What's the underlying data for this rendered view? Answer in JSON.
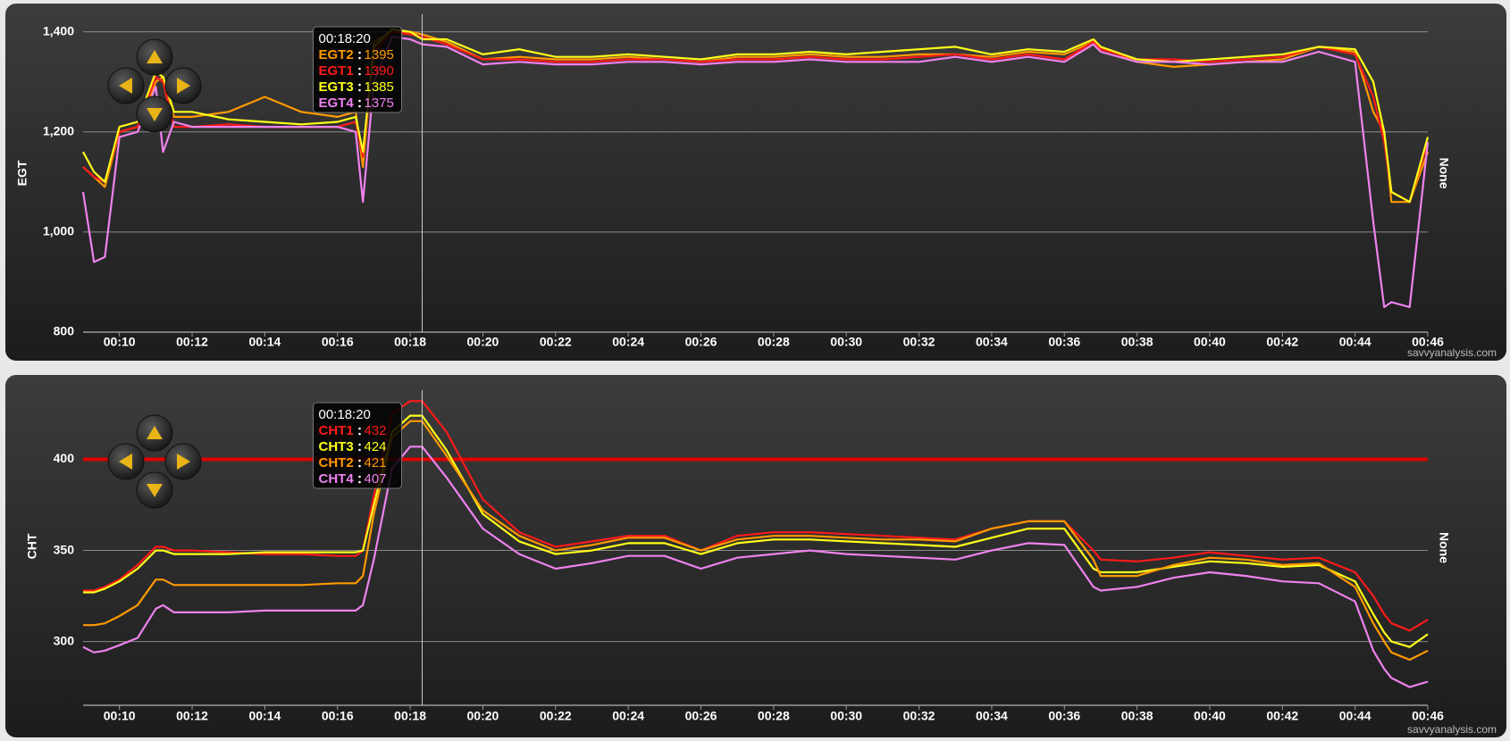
{
  "chart_data": [
    {
      "type": "line",
      "y_label": "EGT",
      "right_label": "None",
      "watermark": "savvyanalysis.com",
      "grid": true,
      "x": [
        9,
        9.3,
        9.6,
        10,
        10.5,
        11,
        11.2,
        11.5,
        12,
        13,
        14,
        15,
        16,
        16.5,
        16.7,
        17,
        17.5,
        18,
        18.33,
        19,
        20,
        21,
        22,
        23,
        24,
        25,
        26,
        27,
        28,
        29,
        30,
        31,
        32,
        33,
        34,
        35,
        36,
        36.8,
        37,
        38,
        39,
        40,
        41,
        42,
        43,
        44,
        44.5,
        44.8,
        45,
        45.5,
        46
      ],
      "xlim": [
        9,
        46
      ],
      "xticks": [
        {
          "value": 10,
          "label": "00:10"
        },
        {
          "value": 12,
          "label": "00:12"
        },
        {
          "value": 14,
          "label": "00:14"
        },
        {
          "value": 16,
          "label": "00:16"
        },
        {
          "value": 18,
          "label": "00:18"
        },
        {
          "value": 20,
          "label": "00:20"
        },
        {
          "value": 22,
          "label": "00:22"
        },
        {
          "value": 24,
          "label": "00:24"
        },
        {
          "value": 26,
          "label": "00:26"
        },
        {
          "value": 28,
          "label": "00:28"
        },
        {
          "value": 30,
          "label": "00:30"
        },
        {
          "value": 32,
          "label": "00:32"
        },
        {
          "value": 34,
          "label": "00:34"
        },
        {
          "value": 36,
          "label": "00:36"
        },
        {
          "value": 38,
          "label": "00:38"
        },
        {
          "value": 40,
          "label": "00:40"
        },
        {
          "value": 42,
          "label": "00:42"
        },
        {
          "value": 44,
          "label": "00:44"
        },
        {
          "value": 46,
          "label": "00:46"
        }
      ],
      "ylim": [
        800,
        1435
      ],
      "yticks": [
        {
          "value": 800,
          "label": "800"
        },
        {
          "value": 1000,
          "label": "1,000"
        },
        {
          "value": 1200,
          "label": "1,200"
        },
        {
          "value": 1400,
          "label": "1,400"
        }
      ],
      "series": [
        {
          "name": "EGT2",
          "color": "#ff9900",
          "values": [
            1130,
            1110,
            1090,
            1200,
            1210,
            1300,
            1310,
            1230,
            1230,
            1240,
            1270,
            1240,
            1230,
            1240,
            1130,
            1380,
            1400,
            1400,
            1395,
            1380,
            1345,
            1350,
            1345,
            1345,
            1350,
            1345,
            1340,
            1350,
            1350,
            1355,
            1350,
            1350,
            1355,
            1355,
            1350,
            1360,
            1355,
            1380,
            1370,
            1340,
            1330,
            1335,
            1340,
            1345,
            1370,
            1360,
            1240,
            1200,
            1060,
            1060,
            1160
          ]
        },
        {
          "name": "EGT1",
          "color": "#ff1a1a",
          "values": [
            1130,
            1110,
            1100,
            1200,
            1210,
            1310,
            1300,
            1210,
            1210,
            1215,
            1210,
            1210,
            1210,
            1220,
            1150,
            1360,
            1400,
            1395,
            1390,
            1375,
            1345,
            1345,
            1340,
            1340,
            1345,
            1345,
            1340,
            1345,
            1345,
            1350,
            1345,
            1345,
            1350,
            1355,
            1345,
            1355,
            1345,
            1380,
            1365,
            1345,
            1345,
            1340,
            1345,
            1350,
            1370,
            1355,
            1270,
            1180,
            1080,
            1060,
            1180
          ]
        },
        {
          "name": "EGT3",
          "color": "#ffff1a",
          "values": [
            1160,
            1120,
            1100,
            1210,
            1220,
            1320,
            1310,
            1240,
            1240,
            1225,
            1220,
            1215,
            1220,
            1230,
            1160,
            1370,
            1405,
            1400,
            1385,
            1385,
            1355,
            1365,
            1350,
            1350,
            1355,
            1350,
            1345,
            1355,
            1355,
            1360,
            1355,
            1360,
            1365,
            1370,
            1355,
            1365,
            1360,
            1385,
            1370,
            1345,
            1340,
            1345,
            1350,
            1355,
            1370,
            1365,
            1300,
            1200,
            1080,
            1060,
            1190
          ]
        },
        {
          "name": "EGT4",
          "color": "#ee82ee",
          "values": [
            1080,
            940,
            950,
            1190,
            1200,
            1290,
            1160,
            1220,
            1210,
            1210,
            1210,
            1210,
            1210,
            1200,
            1060,
            1300,
            1390,
            1385,
            1375,
            1370,
            1335,
            1340,
            1335,
            1335,
            1340,
            1340,
            1335,
            1340,
            1340,
            1345,
            1340,
            1340,
            1340,
            1350,
            1340,
            1350,
            1340,
            1375,
            1360,
            1340,
            1340,
            1335,
            1340,
            1340,
            1360,
            1340,
            1020,
            850,
            860,
            850,
            1180
          ]
        }
      ],
      "crosshair": {
        "value": 18.33,
        "label": "00:18:20"
      },
      "tooltip_values": [
        1395,
        1390,
        1385,
        1375
      ]
    },
    {
      "type": "line",
      "y_label": "CHT",
      "right_label": "None",
      "watermark": "savvyanalysis.com",
      "grid": true,
      "x": [
        9,
        9.3,
        9.6,
        10,
        10.5,
        11,
        11.2,
        11.5,
        12,
        13,
        14,
        15,
        16,
        16.5,
        16.7,
        17,
        17.5,
        18,
        18.33,
        19,
        20,
        21,
        22,
        23,
        24,
        25,
        26,
        27,
        28,
        29,
        30,
        31,
        32,
        33,
        34,
        35,
        36,
        36.8,
        37,
        38,
        39,
        40,
        41,
        42,
        43,
        44,
        44.5,
        44.8,
        45,
        45.5,
        46
      ],
      "xlim": [
        9,
        46
      ],
      "xticks": [
        {
          "value": 10,
          "label": "00:10"
        },
        {
          "value": 12,
          "label": "00:12"
        },
        {
          "value": 14,
          "label": "00:14"
        },
        {
          "value": 16,
          "label": "00:16"
        },
        {
          "value": 18,
          "label": "00:18"
        },
        {
          "value": 20,
          "label": "00:20"
        },
        {
          "value": 22,
          "label": "00:22"
        },
        {
          "value": 24,
          "label": "00:24"
        },
        {
          "value": 26,
          "label": "00:26"
        },
        {
          "value": 28,
          "label": "00:28"
        },
        {
          "value": 30,
          "label": "00:30"
        },
        {
          "value": 32,
          "label": "00:32"
        },
        {
          "value": 34,
          "label": "00:34"
        },
        {
          "value": 36,
          "label": "00:36"
        },
        {
          "value": 38,
          "label": "00:38"
        },
        {
          "value": 40,
          "label": "00:40"
        },
        {
          "value": 42,
          "label": "00:42"
        },
        {
          "value": 44,
          "label": "00:44"
        },
        {
          "value": 46,
          "label": "00:46"
        }
      ],
      "ylim": [
        265,
        438
      ],
      "yticks": [
        300,
        350,
        400
      ],
      "threshold": {
        "value": 400,
        "color": "#e00000"
      },
      "series": [
        {
          "name": "CHT1",
          "color": "#ff1a1a",
          "values": [
            328,
            328,
            330,
            334,
            342,
            352,
            352,
            350,
            350,
            349,
            348,
            348,
            347,
            347,
            350,
            380,
            425,
            432,
            432,
            415,
            378,
            360,
            352,
            355,
            358,
            358,
            350,
            358,
            360,
            360,
            359,
            358,
            357,
            356,
            362,
            366,
            366,
            350,
            345,
            344,
            346,
            349,
            347,
            345,
            346,
            338,
            325,
            315,
            310,
            306,
            312
          ]
        },
        {
          "name": "CHT3",
          "color": "#ffff1a",
          "values": [
            327,
            327,
            329,
            333,
            340,
            350,
            350,
            348,
            348,
            348,
            349,
            349,
            349,
            349,
            350,
            375,
            415,
            424,
            424,
            405,
            370,
            355,
            348,
            350,
            354,
            354,
            348,
            354,
            356,
            356,
            355,
            354,
            353,
            352,
            357,
            362,
            362,
            340,
            338,
            338,
            341,
            344,
            343,
            341,
            342,
            333,
            315,
            305,
            300,
            297,
            304
          ]
        },
        {
          "name": "CHT2",
          "color": "#ff9900",
          "values": [
            309,
            309,
            310,
            314,
            320,
            334,
            334,
            331,
            331,
            331,
            331,
            331,
            332,
            332,
            336,
            370,
            412,
            421,
            421,
            402,
            372,
            358,
            350,
            353,
            357,
            357,
            350,
            356,
            358,
            358,
            357,
            356,
            356,
            355,
            362,
            366,
            366,
            345,
            336,
            336,
            342,
            346,
            345,
            342,
            343,
            330,
            310,
            300,
            294,
            290,
            295
          ]
        },
        {
          "name": "CHT4",
          "color": "#ee82ee",
          "values": [
            297,
            294,
            295,
            298,
            302,
            318,
            320,
            316,
            316,
            316,
            317,
            317,
            317,
            317,
            320,
            345,
            395,
            407,
            407,
            390,
            362,
            348,
            340,
            343,
            347,
            347,
            340,
            346,
            348,
            350,
            348,
            347,
            346,
            345,
            350,
            354,
            353,
            330,
            328,
            330,
            335,
            338,
            336,
            333,
            332,
            322,
            295,
            285,
            280,
            275,
            278
          ]
        }
      ],
      "crosshair": {
        "value": 18.33,
        "label": "00:18:20"
      },
      "tooltip_values": [
        432,
        424,
        421,
        407
      ]
    }
  ]
}
